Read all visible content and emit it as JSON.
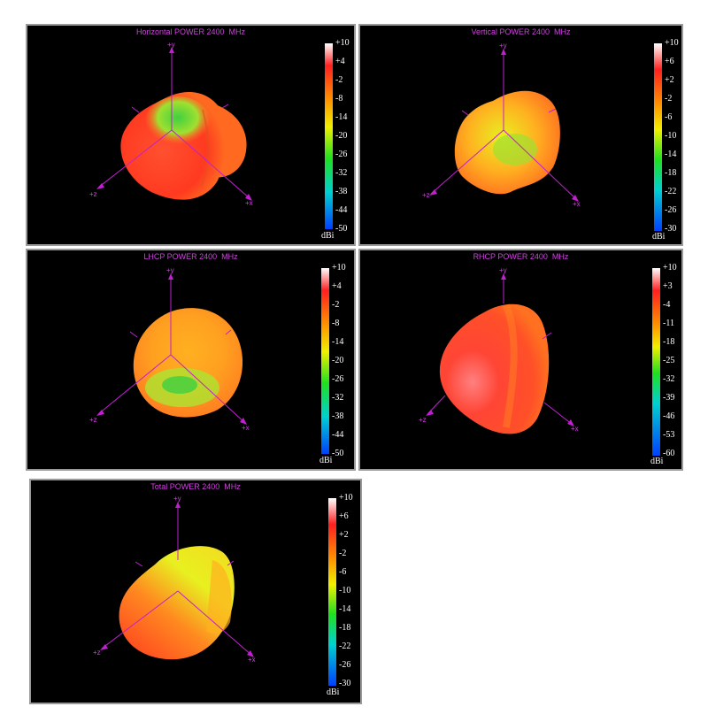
{
  "panels": [
    {
      "title": "Horizontal POWER 2400  MHz",
      "axes": {
        "y": "+y",
        "x": "+x",
        "z": "+z"
      },
      "colorbar": {
        "ticks": [
          "+10",
          "+4",
          "-2",
          "-8",
          "-14",
          "-20",
          "-26",
          "-32",
          "-38",
          "-44",
          "-50"
        ],
        "unit": "dBi"
      }
    },
    {
      "title": "Vertical POWER 2400  MHz",
      "axes": {
        "y": "+y",
        "x": "+x",
        "z": "+z"
      },
      "colorbar": {
        "ticks": [
          "+10",
          "+6",
          "+2",
          "-2",
          "-6",
          "-10",
          "-14",
          "-18",
          "-22",
          "-26",
          "-30"
        ],
        "unit": "dBi"
      }
    },
    {
      "title": "LHCP POWER 2400  MHz",
      "axes": {
        "y": "+y",
        "x": "+x",
        "z": "+z"
      },
      "colorbar": {
        "ticks": [
          "+10",
          "+4",
          "-2",
          "-8",
          "-14",
          "-20",
          "-26",
          "-32",
          "-38",
          "-44",
          "-50"
        ],
        "unit": "dBi"
      }
    },
    {
      "title": "RHCP POWER 2400  MHz",
      "axes": {
        "y": "+y",
        "x": "+x",
        "z": "+z"
      },
      "colorbar": {
        "ticks": [
          "+10",
          "+3",
          "-4",
          "-11",
          "-18",
          "-25",
          "-32",
          "-39",
          "-46",
          "-53",
          "-60"
        ],
        "unit": "dBi"
      }
    },
    {
      "title": "Total POWER 2400  MHz",
      "axes": {
        "y": "+y",
        "x": "+x",
        "z": "+z"
      },
      "colorbar": {
        "ticks": [
          "+10",
          "+6",
          "+2",
          "-2",
          "-6",
          "-10",
          "-14",
          "-18",
          "-22",
          "-26",
          "-30"
        ],
        "unit": "dBi"
      }
    }
  ],
  "colors": {
    "title": "#d040e0",
    "axis": "#c020d0",
    "background": "#000000",
    "colormap": [
      "#ffffff",
      "#ff2020",
      "#ff9000",
      "#f0f000",
      "#20e020",
      "#00d0d0",
      "#0040ff"
    ]
  }
}
